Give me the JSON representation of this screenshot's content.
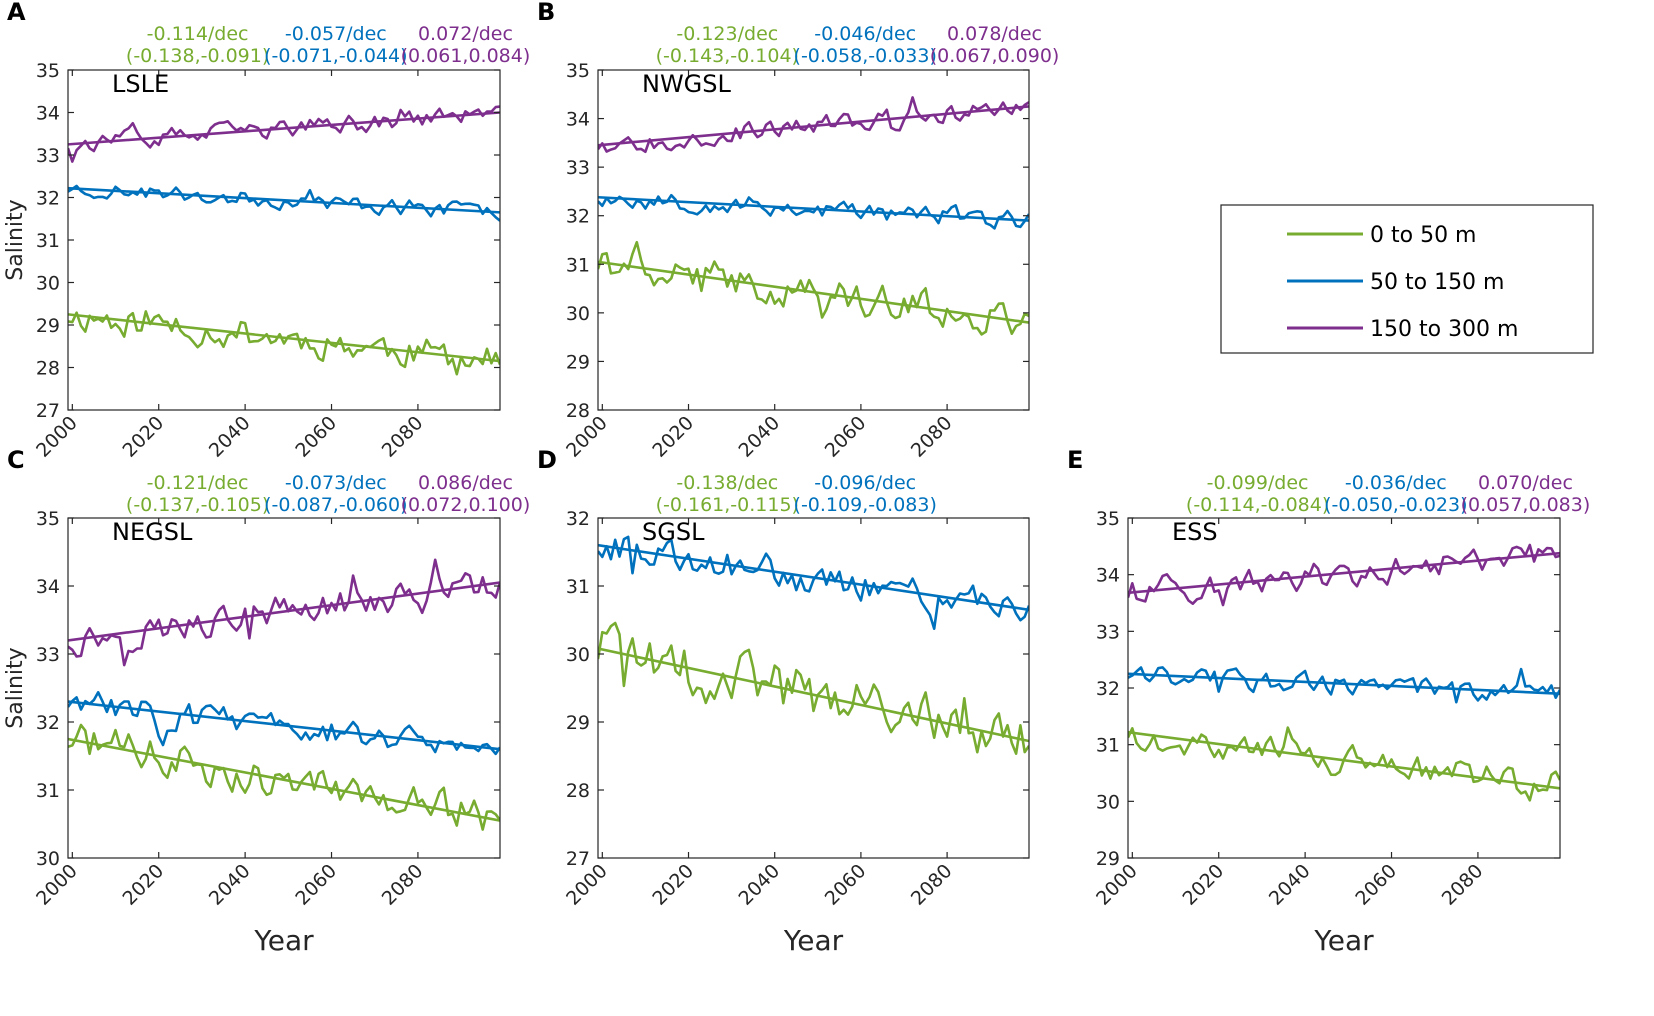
{
  "colors": {
    "s0": "#77ac30",
    "s1": "#0072bd",
    "s2": "#7e2f8e",
    "axis": "#262626"
  },
  "legend": {
    "entries": [
      {
        "label": "0 to 50 m",
        "color": "#77ac30"
      },
      {
        "label": "50 to 150 m",
        "color": "#0072bd"
      },
      {
        "label": "150 to 300 m",
        "color": "#7e2f8e"
      }
    ]
  },
  "chart_data": [
    {
      "type": "line",
      "letter": "A",
      "title": "LSLE",
      "xlabel": "",
      "ylabel": "Salinity",
      "xlim": [
        1999,
        2099
      ],
      "ylim": [
        27,
        35
      ],
      "xticks": [
        2000,
        2020,
        2040,
        2060,
        2080
      ],
      "yticks": [
        27,
        28,
        29,
        30,
        31,
        32,
        33,
        34,
        35
      ],
      "series": [
        {
          "name": "0 to 50 m",
          "color": "#77ac30",
          "trend": [
            29.25,
            28.15
          ],
          "noise": 0.32,
          "seed": 11,
          "rate": "-0.114/dec",
          "ci": "(-0.138,-0.091)"
        },
        {
          "name": "50 to 150 m",
          "color": "#0072bd",
          "trend": [
            32.22,
            31.65
          ],
          "noise": 0.16,
          "seed": 23,
          "rate": "-0.057/dec",
          "ci": "(-0.071,-0.044)"
        },
        {
          "name": "150 to 300 m",
          "color": "#7e2f8e",
          "trend": [
            33.25,
            34.0
          ],
          "noise": 0.18,
          "seed": 37,
          "rate": "0.072/dec",
          "ci": "(0.061,0.084)"
        }
      ]
    },
    {
      "type": "line",
      "letter": "B",
      "title": "NWGSL",
      "xlabel": "",
      "ylabel": "",
      "xlim": [
        1999,
        2099
      ],
      "ylim": [
        28,
        35
      ],
      "xticks": [
        2000,
        2020,
        2040,
        2060,
        2080
      ],
      "yticks": [
        28,
        29,
        30,
        31,
        32,
        33,
        34,
        35
      ],
      "series": [
        {
          "name": "0 to 50 m",
          "color": "#77ac30",
          "trend": [
            31.05,
            29.8
          ],
          "noise": 0.3,
          "seed": 41,
          "rate": "-0.123/dec",
          "ci": "(-0.143,-0.104)"
        },
        {
          "name": "50 to 150 m",
          "color": "#0072bd",
          "trend": [
            32.38,
            31.9
          ],
          "noise": 0.17,
          "seed": 53,
          "rate": "-0.046/dec",
          "ci": "(-0.058,-0.033)"
        },
        {
          "name": "150 to 300 m",
          "color": "#7e2f8e",
          "trend": [
            33.45,
            34.25
          ],
          "noise": 0.17,
          "seed": 67,
          "rate": "0.078/dec",
          "ci": "(0.067,0.090)"
        }
      ]
    },
    {
      "type": "line",
      "letter": "C",
      "title": "NEGSL",
      "xlabel": "Year",
      "ylabel": "Salinity",
      "xlim": [
        1999,
        2099
      ],
      "ylim": [
        30,
        35
      ],
      "xticks": [
        2000,
        2020,
        2040,
        2060,
        2080
      ],
      "yticks": [
        30,
        31,
        32,
        33,
        34,
        35
      ],
      "series": [
        {
          "name": "0 to 50 m",
          "color": "#77ac30",
          "trend": [
            31.75,
            30.55
          ],
          "noise": 0.24,
          "seed": 71,
          "rate": "-0.121/dec",
          "ci": "(-0.137,-0.105)"
        },
        {
          "name": "50 to 150 m",
          "color": "#0072bd",
          "trend": [
            32.3,
            31.6
          ],
          "noise": 0.17,
          "seed": 83,
          "rate": "-0.073/dec",
          "ci": "(-0.087,-0.060)"
        },
        {
          "name": "150 to 300 m",
          "color": "#7e2f8e",
          "trend": [
            33.2,
            34.05
          ],
          "noise": 0.2,
          "seed": 97,
          "rate": "0.086/dec",
          "ci": "(0.072,0.100)"
        }
      ]
    },
    {
      "type": "line",
      "letter": "D",
      "title": "SGSL",
      "xlabel": "Year",
      "ylabel": "",
      "xlim": [
        1999,
        2099
      ],
      "ylim": [
        27,
        32
      ],
      "xticks": [
        2000,
        2020,
        2040,
        2060,
        2080
      ],
      "yticks": [
        27,
        28,
        29,
        30,
        31,
        32
      ],
      "series": [
        {
          "name": "0 to 50 m",
          "color": "#77ac30",
          "trend": [
            30.08,
            28.72
          ],
          "noise": 0.34,
          "seed": 101,
          "rate": "-0.138/dec",
          "ci": "(-0.161,-0.115)"
        },
        {
          "name": "50 to 150 m",
          "color": "#0072bd",
          "trend": [
            31.6,
            30.65
          ],
          "noise": 0.2,
          "seed": 113,
          "rate": "-0.096/dec",
          "ci": "(-0.109,-0.083)"
        }
      ]
    },
    {
      "type": "line",
      "letter": "E",
      "title": "ESS",
      "xlabel": "Year",
      "ylabel": "",
      "xlim": [
        1999,
        2099
      ],
      "ylim": [
        29,
        35
      ],
      "xticks": [
        2000,
        2020,
        2040,
        2060,
        2080
      ],
      "yticks": [
        29,
        30,
        31,
        32,
        33,
        34,
        35
      ],
      "series": [
        {
          "name": "0 to 50 m",
          "color": "#77ac30",
          "trend": [
            31.22,
            30.23
          ],
          "noise": 0.22,
          "seed": 127,
          "rate": "-0.099/dec",
          "ci": "(-0.114,-0.084)"
        },
        {
          "name": "50 to 150 m",
          "color": "#0072bd",
          "trend": [
            32.25,
            31.9
          ],
          "noise": 0.16,
          "seed": 131,
          "rate": "-0.036/dec",
          "ci": "(-0.050,-0.023)"
        },
        {
          "name": "150 to 300 m",
          "color": "#7e2f8e",
          "trend": [
            33.68,
            34.38
          ],
          "noise": 0.2,
          "seed": 139,
          "rate": "0.070/dec",
          "ci": "(0.057,0.083)"
        }
      ]
    }
  ]
}
